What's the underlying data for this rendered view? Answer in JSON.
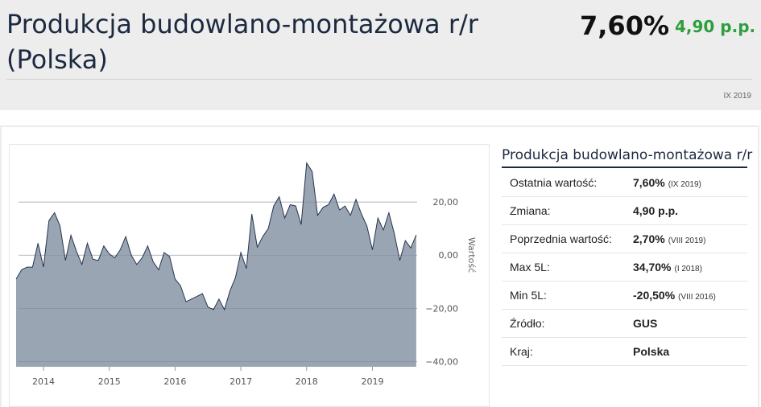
{
  "header": {
    "title": "Produkcja budowlano-montażowa r/r (Polska)",
    "value": "7,60%",
    "change": "4,90 p.p.",
    "period": "IX 2019"
  },
  "stats": {
    "title": "Produkcja budowlano-montażowa r/r",
    "rows": [
      {
        "label": "Ostatnia wartość:",
        "value": "7,60%",
        "note": "(IX 2019)"
      },
      {
        "label": "Zmiana:",
        "value": "4,90 p.p.",
        "note": ""
      },
      {
        "label": "Poprzednia wartość:",
        "value": "2,70%",
        "note": "(VIII 2019)"
      },
      {
        "label": "Max 5L:",
        "value": "34,70%",
        "note": "(I 2018)"
      },
      {
        "label": "Min 5L:",
        "value": "-20,50%",
        "note": "(VIII 2016)"
      },
      {
        "label": "Źródło:",
        "value": "GUS",
        "note": ""
      },
      {
        "label": "Kraj:",
        "value": "Polska",
        "note": ""
      }
    ]
  },
  "colors": {
    "area_fill": "#9aa5b4",
    "area_stroke": "#26354d",
    "accent_green": "#2e9e3e",
    "title": "#1c2a40"
  },
  "chart_data": {
    "type": "area",
    "ylabel": "Wartość",
    "ylim": [
      -42,
      37
    ],
    "xlim": [
      2013.62,
      2019.68
    ],
    "y_ticks": [
      20,
      0,
      -20,
      -40
    ],
    "y_tick_labels": [
      "20,00",
      "0,00",
      "−20,00",
      "−40,00"
    ],
    "x_ticks": [
      2014,
      2015,
      2016,
      2017,
      2018,
      2019
    ],
    "x_tick_labels": [
      "2014",
      "2015",
      "2016",
      "2017",
      "2018",
      "2019"
    ],
    "grid": true,
    "series": [
      {
        "x": [
          "2013-08",
          "2013-09",
          "2013-10",
          "2013-11",
          "2013-12",
          "2014-01",
          "2014-02",
          "2014-03",
          "2014-04",
          "2014-05",
          "2014-06",
          "2014-07",
          "2014-08",
          "2014-09",
          "2014-10",
          "2014-11",
          "2014-12",
          "2015-01",
          "2015-02",
          "2015-03",
          "2015-04",
          "2015-05",
          "2015-06",
          "2015-07",
          "2015-08",
          "2015-09",
          "2015-10",
          "2015-11",
          "2015-12",
          "2016-01",
          "2016-02",
          "2016-03",
          "2016-04",
          "2016-05",
          "2016-06",
          "2016-07",
          "2016-08",
          "2016-09",
          "2016-10",
          "2016-11",
          "2016-12",
          "2017-01",
          "2017-02",
          "2017-03",
          "2017-04",
          "2017-05",
          "2017-06",
          "2017-07",
          "2017-08",
          "2017-09",
          "2017-10",
          "2017-11",
          "2017-12",
          "2018-01",
          "2018-02",
          "2018-03",
          "2018-04",
          "2018-05",
          "2018-06",
          "2018-07",
          "2018-08",
          "2018-09",
          "2018-10",
          "2018-11",
          "2018-12",
          "2019-01",
          "2019-02",
          "2019-03",
          "2019-04",
          "2019-05",
          "2019-06",
          "2019-07",
          "2019-08",
          "2019-09"
        ],
        "values": [
          -9.0,
          -5.5,
          -4.5,
          -4.5,
          4.5,
          -4.5,
          13.0,
          16.0,
          11.0,
          -2.0,
          7.5,
          1.5,
          -3.5,
          4.5,
          -1.5,
          -2.0,
          3.5,
          0.5,
          -1.0,
          2.0,
          7.0,
          0.0,
          -3.5,
          -1.0,
          3.5,
          -2.5,
          -5.5,
          1.0,
          -0.5,
          -9.0,
          -11.5,
          -17.5,
          -16.5,
          -15.5,
          -14.5,
          -19.5,
          -20.5,
          -16.5,
          -20.5,
          -13.5,
          -8.5,
          1.0,
          -5.0,
          15.5,
          3.0,
          7.0,
          10.0,
          18.5,
          22.0,
          14.0,
          19.0,
          18.5,
          11.5,
          34.7,
          31.5,
          15.0,
          18.0,
          19.0,
          23.0,
          17.0,
          18.5,
          15.0,
          21.0,
          15.5,
          11.0,
          2.0,
          14.0,
          9.5,
          16.0,
          8.0,
          -2.0,
          5.5,
          2.7,
          7.6
        ]
      }
    ]
  }
}
